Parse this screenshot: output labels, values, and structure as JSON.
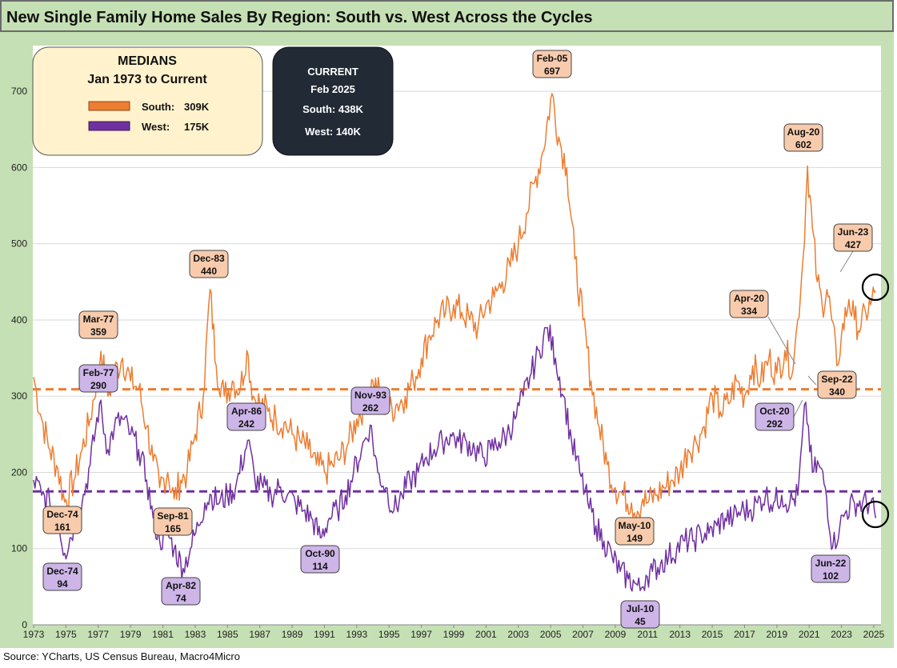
{
  "title": "New Single Family Home Sales By Region: South vs. West Across the Cycles",
  "source": "Source: YCharts, US Census Bureau, Macro4Micro",
  "colors": {
    "south": "#ED7D31",
    "west": "#7030A0",
    "south_fill": "#F8CBAD",
    "west_fill": "#CDB5E8",
    "panel_bg": "#C5E0B4",
    "current_box": "#222A35",
    "medians_box": "#FFF2CC"
  },
  "medians_box": {
    "title": "MEDIANS",
    "subtitle": "Jan 1973 to Current",
    "south_label": "South:",
    "south_value": "309K",
    "west_label": "West:",
    "west_value": "175K"
  },
  "current_box": {
    "title": "CURRENT",
    "date": "Feb 2025",
    "south": "South:  438K",
    "west": "West:  140K"
  },
  "chart_data": {
    "type": "line",
    "x_ticks": [
      "1973",
      "1975",
      "1977",
      "1979",
      "1981",
      "1983",
      "1985",
      "1987",
      "1989",
      "1991",
      "1993",
      "1995",
      "1997",
      "1999",
      "2001",
      "2003",
      "2005",
      "2007",
      "2009",
      "2011",
      "2013",
      "2015",
      "2017",
      "2019",
      "2021",
      "2023",
      "2025"
    ],
    "y_ticks": [
      "0",
      "100",
      "200",
      "300",
      "400",
      "500",
      "600",
      "700"
    ],
    "ylim": [
      0,
      760
    ],
    "xlim": [
      1973,
      2025.3
    ],
    "grid": "horizontal",
    "median_lines": [
      {
        "series": "South",
        "value": 309
      },
      {
        "series": "West",
        "value": 175
      }
    ],
    "series": [
      {
        "name": "South",
        "color": "#ED7D31",
        "x": [
          1973.0,
          1973.5,
          1974.0,
          1974.5,
          1974.92,
          1975.5,
          1976.0,
          1976.5,
          1977.17,
          1977.6,
          1978.0,
          1978.5,
          1979.0,
          1979.5,
          1980.0,
          1980.4,
          1980.8,
          1981.3,
          1981.7,
          1982.1,
          1982.5,
          1983.0,
          1983.5,
          1983.92,
          1984.3,
          1984.8,
          1985.3,
          1985.8,
          1986.2,
          1986.6,
          1987.0,
          1987.5,
          1988.0,
          1988.5,
          1989.0,
          1989.5,
          1990.0,
          1990.5,
          1991.0,
          1991.5,
          1992.0,
          1992.5,
          1993.0,
          1993.5,
          1994.0,
          1994.5,
          1995.0,
          1995.5,
          1996.0,
          1996.5,
          1997.0,
          1997.5,
          1998.0,
          1998.5,
          1999.0,
          1999.5,
          2000.0,
          2000.5,
          2001.0,
          2001.5,
          2002.0,
          2002.5,
          2003.0,
          2003.5,
          2004.0,
          2004.5,
          2005.08,
          2005.5,
          2006.0,
          2006.5,
          2007.0,
          2007.5,
          2008.0,
          2008.5,
          2009.0,
          2009.5,
          2010.0,
          2010.37,
          2010.7,
          2011.0,
          2011.5,
          2012.0,
          2012.5,
          2013.0,
          2013.5,
          2014.0,
          2014.5,
          2015.0,
          2015.5,
          2016.0,
          2016.5,
          2017.0,
          2017.5,
          2018.0,
          2018.5,
          2019.0,
          2019.5,
          2020.0,
          2020.29,
          2020.62,
          2020.9,
          2021.2,
          2021.5,
          2021.8,
          2022.1,
          2022.4,
          2022.71,
          2023.0,
          2023.46,
          2023.8,
          2024.2,
          2024.5,
          2024.8,
          2025.12
        ],
        "values": [
          325,
          270,
          230,
          205,
          161,
          190,
          230,
          270,
          359,
          300,
          330,
          350,
          320,
          310,
          260,
          215,
          180,
          200,
          165,
          190,
          200,
          250,
          300,
          440,
          340,
          300,
          320,
          310,
          360,
          300,
          290,
          280,
          270,
          265,
          250,
          240,
          230,
          210,
          200,
          210,
          220,
          240,
          270,
          290,
          320,
          300,
          280,
          290,
          300,
          320,
          350,
          380,
          400,
          410,
          420,
          410,
          400,
          390,
          420,
          430,
          450,
          470,
          500,
          540,
          580,
          620,
          697,
          640,
          600,
          480,
          400,
          320,
          260,
          210,
          180,
          170,
          160,
          149,
          165,
          160,
          170,
          180,
          190,
          200,
          230,
          240,
          260,
          300,
          280,
          290,
          320,
          300,
          340,
          320,
          350,
          330,
          360,
          334,
          400,
          480,
          602,
          520,
          450,
          420,
          440,
          400,
          340,
          380,
          427,
          400,
          390,
          410,
          420,
          438
        ]
      },
      {
        "name": "West",
        "color": "#7030A0",
        "x": [
          1973.0,
          1973.5,
          1974.0,
          1974.5,
          1974.92,
          1975.5,
          1976.0,
          1976.5,
          1977.08,
          1977.6,
          1978.0,
          1978.5,
          1979.0,
          1979.5,
          1980.0,
          1980.4,
          1980.8,
          1981.3,
          1981.7,
          1982.25,
          1982.7,
          1983.2,
          1983.6,
          1984.0,
          1984.5,
          1985.0,
          1985.5,
          1986.25,
          1986.7,
          1987.2,
          1987.7,
          1988.2,
          1988.7,
          1989.2,
          1989.7,
          1990.2,
          1990.75,
          1991.3,
          1991.8,
          1992.3,
          1992.8,
          1993.3,
          1993.83,
          1994.3,
          1994.8,
          1995.3,
          1995.8,
          1996.3,
          1996.8,
          1997.3,
          1997.8,
          1998.3,
          1998.8,
          1999.3,
          1999.8,
          2000.3,
          2000.8,
          2001.3,
          2001.8,
          2002.3,
          2002.8,
          2003.3,
          2003.8,
          2004.3,
          2004.8,
          2005.3,
          2005.8,
          2006.3,
          2006.8,
          2007.3,
          2007.8,
          2008.3,
          2008.8,
          2009.3,
          2009.8,
          2010.2,
          2010.54,
          2010.9,
          2011.3,
          2011.8,
          2012.3,
          2012.8,
          2013.3,
          2013.8,
          2014.3,
          2014.8,
          2015.3,
          2015.8,
          2016.3,
          2016.8,
          2017.3,
          2017.8,
          2018.3,
          2018.8,
          2019.3,
          2019.8,
          2020.3,
          2020.79,
          2021.2,
          2021.6,
          2022.0,
          2022.46,
          2022.9,
          2023.3,
          2023.8,
          2024.3,
          2024.8,
          2025.12
        ],
        "values": [
          190,
          170,
          160,
          140,
          94,
          130,
          160,
          210,
          290,
          230,
          260,
          270,
          250,
          230,
          190,
          140,
          110,
          120,
          100,
          74,
          100,
          130,
          160,
          170,
          160,
          170,
          180,
          242,
          190,
          180,
          170,
          180,
          170,
          160,
          150,
          140,
          114,
          140,
          150,
          170,
          200,
          230,
          262,
          200,
          180,
          150,
          170,
          190,
          200,
          220,
          230,
          240,
          250,
          240,
          240,
          230,
          220,
          230,
          240,
          250,
          270,
          300,
          330,
          360,
          390,
          350,
          300,
          240,
          200,
          160,
          130,
          110,
          90,
          70,
          60,
          55,
          45,
          65,
          70,
          80,
          90,
          100,
          110,
          110,
          120,
          120,
          130,
          140,
          140,
          150,
          150,
          160,
          170,
          160,
          170,
          160,
          170,
          292,
          200,
          210,
          180,
          102,
          130,
          150,
          160,
          160,
          160,
          140
        ]
      }
    ],
    "annotations": [
      {
        "series": "South",
        "date": "Mar-77",
        "value": "359",
        "x": 1977.17
      },
      {
        "series": "South",
        "date": "Dec-74",
        "value": "161",
        "x": 1974.92
      },
      {
        "series": "South",
        "date": "Dec-83",
        "value": "440",
        "x": 1983.92
      },
      {
        "series": "South",
        "date": "Sep-81",
        "value": "165",
        "x": 1981.67
      },
      {
        "series": "South",
        "date": "Feb-05",
        "value": "697",
        "x": 2005.08
      },
      {
        "series": "South",
        "date": "May-10",
        "value": "149",
        "x": 2010.37
      },
      {
        "series": "South",
        "date": "Aug-20",
        "value": "602",
        "x": 2020.62
      },
      {
        "series": "South",
        "date": "Apr-20",
        "value": "334",
        "x": 2020.29
      },
      {
        "series": "South",
        "date": "Jun-23",
        "value": "427",
        "x": 2023.46
      },
      {
        "series": "South",
        "date": "Sep-22",
        "value": "340",
        "x": 2022.71
      },
      {
        "series": "West",
        "date": "Feb-77",
        "value": "290",
        "x": 1977.08
      },
      {
        "series": "West",
        "date": "Dec-74",
        "value": "94",
        "x": 1974.92
      },
      {
        "series": "West",
        "date": "Apr-82",
        "value": "74",
        "x": 1982.25
      },
      {
        "series": "West",
        "date": "Apr-86",
        "value": "242",
        "x": 1986.25
      },
      {
        "series": "West",
        "date": "Oct-90",
        "value": "114",
        "x": 1990.75
      },
      {
        "series": "West",
        "date": "Nov-93",
        "value": "262",
        "x": 1993.83
      },
      {
        "series": "West",
        "date": "Jul-10",
        "value": "45",
        "x": 2010.54
      },
      {
        "series": "West",
        "date": "Oct-20",
        "value": "292",
        "x": 2020.79
      },
      {
        "series": "West",
        "date": "Jun-22",
        "value": "102",
        "x": 2022.46
      }
    ]
  }
}
